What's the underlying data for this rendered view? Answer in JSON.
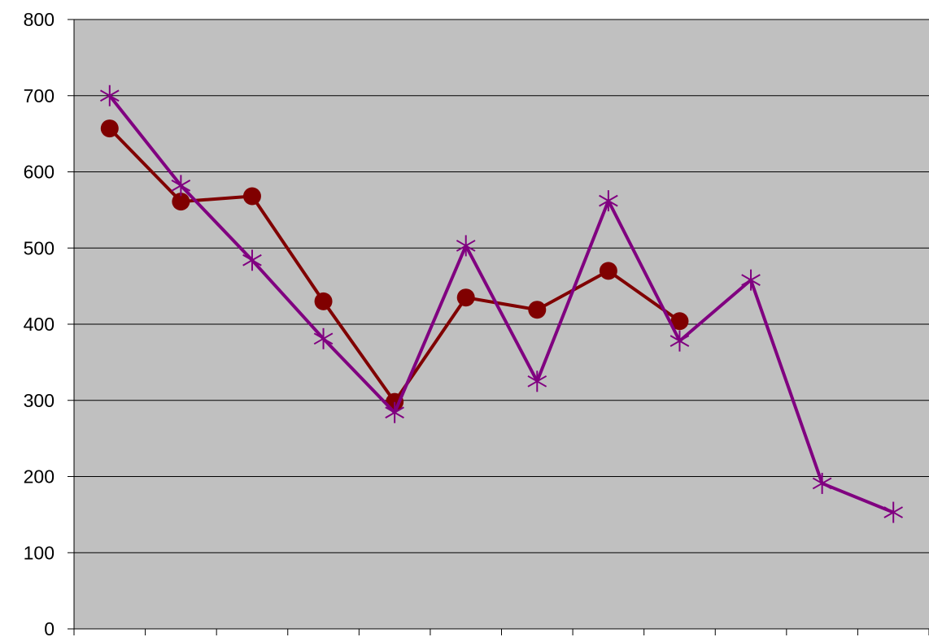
{
  "chart_data": {
    "type": "line",
    "title": "",
    "xlabel": "",
    "ylabel": "",
    "ylim": [
      0,
      800
    ],
    "yticks": [
      0,
      100,
      200,
      300,
      400,
      500,
      600,
      700,
      800
    ],
    "x": [
      1,
      2,
      3,
      4,
      5,
      6,
      7,
      8,
      9,
      10,
      11,
      12
    ],
    "grid": "horizontal",
    "legend": "none",
    "plot_background": "#c0c0c0",
    "series": [
      {
        "marker": "circle",
        "color": "#800000",
        "values": [
          657,
          561,
          568,
          430,
          298,
          435,
          419,
          470,
          404,
          null,
          null,
          null
        ]
      },
      {
        "marker": "asterisk",
        "color": "#800080",
        "values": [
          700,
          582,
          484,
          381,
          284,
          503,
          325,
          562,
          378,
          458,
          191,
          153
        ]
      }
    ]
  }
}
